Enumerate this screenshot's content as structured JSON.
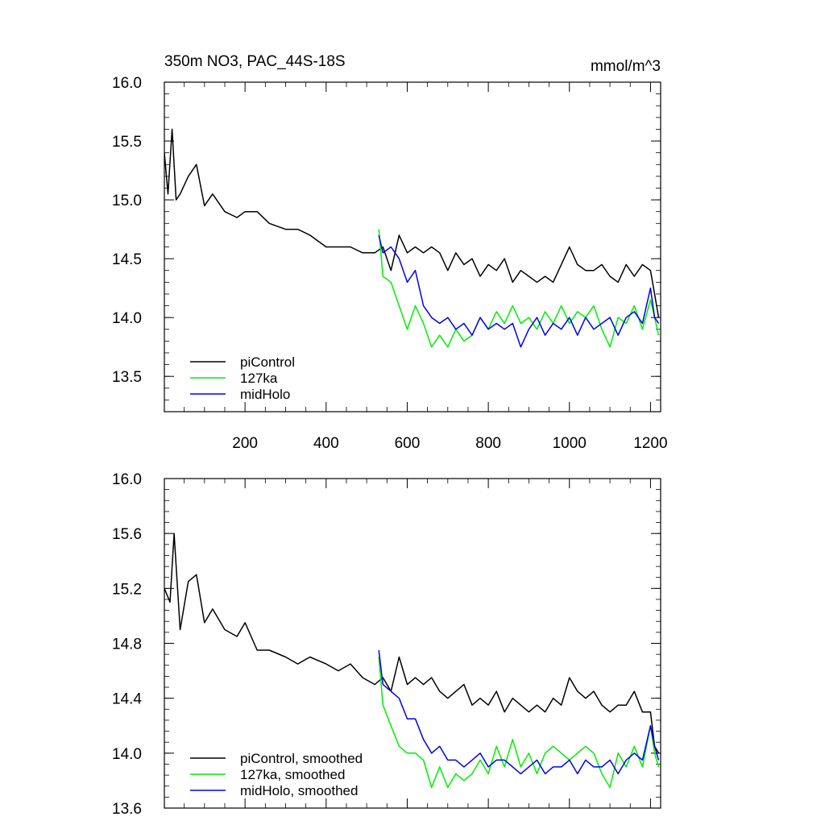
{
  "chart_data": [
    {
      "type": "line",
      "title": "350m NO3, PAC_44S-18S",
      "units": "mmol/m^3",
      "xlim": [
        1,
        1225
      ],
      "ylim": [
        13.2,
        16.0
      ],
      "x_ticks": [
        200,
        400,
        600,
        800,
        1000,
        1200
      ],
      "x_tick_labels": [
        "200",
        "400",
        "600",
        "800",
        "1000",
        "1200"
      ],
      "y_ticks": [
        13.5,
        14.0,
        14.5,
        15.0,
        15.5,
        16.0
      ],
      "y_tick_labels": [
        "13.5",
        "14.0",
        "14.5",
        "15.0",
        "15.5",
        "16.0"
      ],
      "legend": {
        "placement": "bottom-left",
        "entries": [
          "piControl",
          "127ka",
          "midHolo"
        ]
      },
      "series": [
        {
          "name": "piControl",
          "color": "#000000",
          "x": [
            1,
            10,
            20,
            30,
            40,
            60,
            80,
            100,
            120,
            150,
            180,
            200,
            230,
            260,
            300,
            330,
            360,
            400,
            430,
            460,
            490,
            520,
            540,
            560,
            580,
            600,
            620,
            640,
            660,
            680,
            700,
            720,
            740,
            760,
            780,
            800,
            820,
            840,
            860,
            880,
            900,
            920,
            940,
            960,
            980,
            1000,
            1020,
            1040,
            1060,
            1080,
            1100,
            1120,
            1140,
            1160,
            1180,
            1200,
            1210,
            1220
          ],
          "values": [
            15.4,
            15.05,
            15.6,
            15.0,
            15.05,
            15.2,
            15.3,
            14.95,
            15.05,
            14.9,
            14.85,
            14.9,
            14.9,
            14.8,
            14.75,
            14.75,
            14.7,
            14.6,
            14.6,
            14.6,
            14.55,
            14.55,
            14.6,
            14.4,
            14.7,
            14.55,
            14.6,
            14.55,
            14.6,
            14.55,
            14.4,
            14.55,
            14.45,
            14.5,
            14.35,
            14.45,
            14.4,
            14.5,
            14.3,
            14.4,
            14.35,
            14.3,
            14.35,
            14.3,
            14.45,
            14.6,
            14.45,
            14.4,
            14.4,
            14.45,
            14.35,
            14.3,
            14.45,
            14.35,
            14.45,
            14.4,
            14.2,
            14.0
          ]
        },
        {
          "name": "127ka",
          "color": "#00ee00",
          "x": [
            530,
            540,
            560,
            580,
            600,
            620,
            640,
            660,
            680,
            700,
            720,
            740,
            760,
            780,
            800,
            820,
            840,
            860,
            880,
            900,
            920,
            940,
            960,
            980,
            1000,
            1020,
            1040,
            1060,
            1080,
            1100,
            1120,
            1140,
            1160,
            1180,
            1200,
            1210,
            1220
          ],
          "values": [
            14.75,
            14.35,
            14.3,
            14.1,
            13.9,
            14.1,
            13.95,
            13.75,
            13.85,
            13.75,
            13.9,
            13.8,
            13.85,
            14.0,
            13.9,
            14.05,
            13.95,
            14.1,
            13.95,
            14.0,
            13.9,
            14.05,
            13.95,
            14.1,
            13.95,
            14.05,
            14.0,
            14.1,
            13.9,
            13.75,
            14.0,
            13.95,
            14.1,
            13.9,
            14.15,
            14.0,
            13.85
          ]
        },
        {
          "name": "midHolo",
          "color": "#0000ee",
          "x": [
            530,
            540,
            560,
            580,
            600,
            620,
            640,
            660,
            680,
            700,
            720,
            740,
            760,
            780,
            800,
            820,
            840,
            860,
            880,
            900,
            920,
            940,
            960,
            980,
            1000,
            1020,
            1040,
            1060,
            1080,
            1100,
            1120,
            1140,
            1160,
            1180,
            1200,
            1210,
            1220
          ],
          "values": [
            14.7,
            14.55,
            14.6,
            14.5,
            14.3,
            14.4,
            14.1,
            14.0,
            13.95,
            14.0,
            13.9,
            13.95,
            13.85,
            14.0,
            13.9,
            13.95,
            13.9,
            13.95,
            13.75,
            13.9,
            14.0,
            13.85,
            13.95,
            13.9,
            14.0,
            13.85,
            14.0,
            13.9,
            13.95,
            14.0,
            13.85,
            14.0,
            14.05,
            13.95,
            14.25,
            14.0,
            13.95
          ]
        }
      ]
    },
    {
      "type": "line",
      "xlim": [
        1,
        1225
      ],
      "ylim": [
        13.6,
        16.0
      ],
      "y_ticks": [
        13.6,
        14.0,
        14.4,
        14.8,
        15.2,
        15.6,
        16.0
      ],
      "y_tick_labels": [
        "13.6",
        "14.0",
        "14.4",
        "14.8",
        "15.2",
        "15.6",
        "16.0"
      ],
      "legend": {
        "placement": "bottom-left",
        "entries": [
          "piControl, smoothed",
          "127ka, smoothed",
          "midHolo, smoothed"
        ]
      },
      "series": [
        {
          "name": "piControl, smoothed",
          "color": "#000000",
          "x": [
            1,
            15,
            25,
            40,
            60,
            80,
            100,
            120,
            150,
            180,
            200,
            230,
            260,
            300,
            330,
            360,
            400,
            430,
            460,
            490,
            520,
            540,
            560,
            580,
            600,
            620,
            640,
            660,
            680,
            700,
            720,
            740,
            760,
            780,
            800,
            820,
            840,
            860,
            880,
            900,
            920,
            940,
            960,
            980,
            1000,
            1020,
            1040,
            1060,
            1080,
            1100,
            1120,
            1140,
            1160,
            1180,
            1200,
            1210,
            1220
          ],
          "values": [
            15.2,
            15.1,
            15.6,
            14.9,
            15.25,
            15.3,
            14.95,
            15.05,
            14.9,
            14.85,
            14.95,
            14.75,
            14.75,
            14.7,
            14.65,
            14.7,
            14.65,
            14.6,
            14.65,
            14.55,
            14.5,
            14.55,
            14.45,
            14.7,
            14.5,
            14.55,
            14.5,
            14.55,
            14.45,
            14.4,
            14.45,
            14.5,
            14.35,
            14.4,
            14.35,
            14.45,
            14.3,
            14.4,
            14.35,
            14.3,
            14.35,
            14.3,
            14.4,
            14.35,
            14.55,
            14.45,
            14.4,
            14.45,
            14.35,
            14.3,
            14.35,
            14.35,
            14.45,
            14.3,
            14.3,
            14.05,
            14.0
          ]
        },
        {
          "name": "127ka, smoothed",
          "color": "#00ee00",
          "x": [
            530,
            540,
            560,
            580,
            600,
            620,
            640,
            660,
            680,
            700,
            720,
            740,
            760,
            780,
            800,
            820,
            840,
            860,
            880,
            900,
            920,
            940,
            960,
            980,
            1000,
            1020,
            1040,
            1060,
            1080,
            1100,
            1120,
            1140,
            1160,
            1180,
            1200,
            1210,
            1220
          ],
          "values": [
            14.7,
            14.35,
            14.2,
            14.05,
            14.0,
            14.0,
            13.95,
            13.75,
            13.9,
            13.75,
            13.85,
            13.8,
            13.85,
            13.95,
            13.85,
            14.05,
            13.9,
            14.1,
            13.9,
            14.0,
            13.85,
            14.0,
            14.05,
            14.0,
            13.95,
            14.0,
            14.05,
            14.0,
            13.85,
            13.75,
            14.0,
            13.9,
            14.05,
            13.9,
            14.2,
            14.0,
            13.9
          ]
        },
        {
          "name": "midHolo, smoothed",
          "color": "#0000ee",
          "x": [
            530,
            540,
            560,
            580,
            600,
            620,
            640,
            660,
            680,
            700,
            720,
            740,
            760,
            780,
            800,
            820,
            840,
            860,
            880,
            900,
            920,
            940,
            960,
            980,
            1000,
            1020,
            1040,
            1060,
            1080,
            1100,
            1120,
            1140,
            1160,
            1180,
            1200,
            1210,
            1220
          ],
          "values": [
            14.75,
            14.5,
            14.45,
            14.4,
            14.25,
            14.25,
            14.1,
            14.0,
            14.05,
            13.95,
            13.95,
            13.9,
            13.95,
            14.0,
            13.9,
            13.95,
            13.95,
            13.9,
            13.85,
            13.9,
            13.95,
            13.85,
            13.9,
            13.9,
            13.95,
            13.85,
            13.95,
            13.9,
            13.9,
            13.95,
            13.85,
            13.95,
            14.0,
            13.95,
            14.2,
            14.05,
            13.95
          ]
        }
      ]
    }
  ]
}
